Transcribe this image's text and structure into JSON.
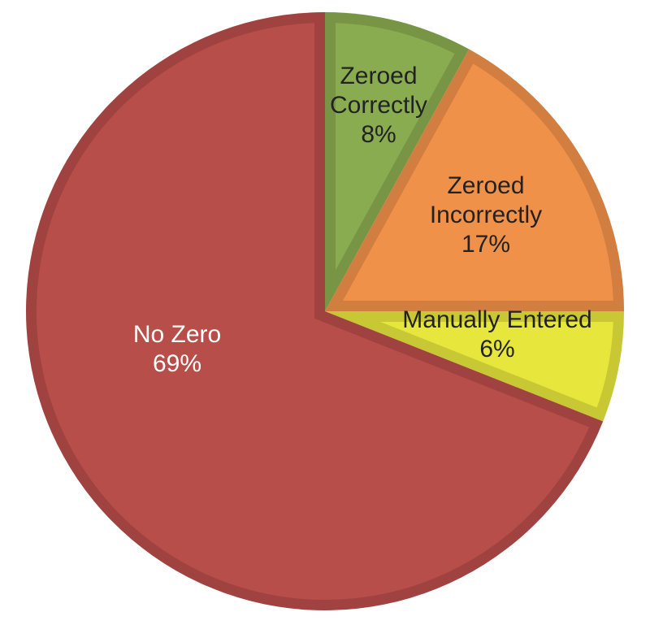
{
  "chart_data": {
    "type": "pie",
    "categories": [
      "Zeroed Correctly",
      "Zeroed Incorrectly",
      "Manually Entered",
      "No Zero"
    ],
    "values": [
      8,
      17,
      6,
      69
    ],
    "value_labels": [
      "8%",
      "17%",
      "6%",
      "69%"
    ],
    "colors": [
      "#8aac50",
      "#f0914a",
      "#e6e63c",
      "#b84e4a"
    ],
    "label_colors": [
      "#222222",
      "#222222",
      "#222222",
      "#ffffff"
    ]
  }
}
